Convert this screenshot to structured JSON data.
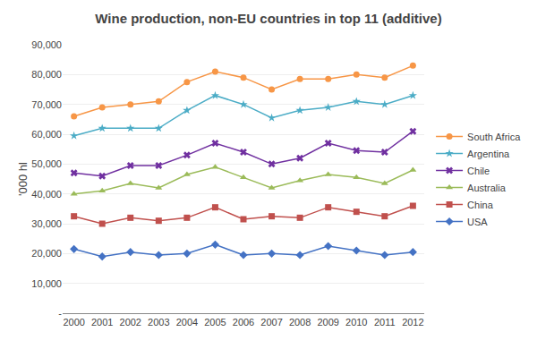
{
  "chart_data": {
    "type": "line",
    "title": "Wine production, non-EU countries in top 11 (additive)",
    "ylabel": "'000 hl",
    "x": [
      2000,
      2001,
      2002,
      2003,
      2004,
      2005,
      2006,
      2007,
      2008,
      2009,
      2010,
      2011,
      2012
    ],
    "series": [
      {
        "name": "South Africa",
        "color": "#F79646",
        "marker": "circle",
        "values": [
          66000,
          69000,
          70000,
          71000,
          77500,
          81000,
          79000,
          75000,
          78500,
          78500,
          80000,
          79000,
          83000
        ]
      },
      {
        "name": "Argentina",
        "color": "#4BACC6",
        "marker": "star",
        "values": [
          59500,
          62000,
          62000,
          62000,
          68000,
          73000,
          70000,
          65500,
          68000,
          69000,
          71000,
          70000,
          73000
        ]
      },
      {
        "name": "Chile",
        "color": "#7030A0",
        "marker": "x",
        "values": [
          47000,
          46000,
          49500,
          49500,
          53000,
          57000,
          54000,
          50000,
          52000,
          57000,
          54500,
          54000,
          61000
        ]
      },
      {
        "name": "Australia",
        "color": "#9BBB59",
        "marker": "triangle-up",
        "values": [
          40000,
          41000,
          43500,
          42000,
          46500,
          49000,
          45500,
          42000,
          44500,
          46500,
          45500,
          43500,
          48000
        ]
      },
      {
        "name": "China",
        "color": "#C0504D",
        "marker": "square",
        "values": [
          32500,
          30000,
          32000,
          31000,
          32000,
          35500,
          31500,
          32500,
          32000,
          35500,
          34000,
          32500,
          36000
        ]
      },
      {
        "name": "USA",
        "color": "#4472C4",
        "marker": "diamond",
        "values": [
          21500,
          19000,
          20500,
          19500,
          20000,
          23000,
          19500,
          20000,
          19500,
          22500,
          21000,
          19500,
          20500
        ]
      }
    ],
    "xlim": [
      1999.6,
      2012.4
    ],
    "xticks": [
      2000,
      2001,
      2002,
      2003,
      2004,
      2005,
      2006,
      2007,
      2008,
      2009,
      2010,
      2011,
      2012
    ],
    "ylim": [
      0,
      90000
    ],
    "yticks": [
      {
        "value": 0,
        "label": "-"
      },
      {
        "value": 10000,
        "label": "10,000"
      },
      {
        "value": 20000,
        "label": "20,000"
      },
      {
        "value": 30000,
        "label": "30,000"
      },
      {
        "value": 40000,
        "label": "40,000"
      },
      {
        "value": 50000,
        "label": "50,000"
      },
      {
        "value": 60000,
        "label": "60,000"
      },
      {
        "value": 70000,
        "label": "70,000"
      },
      {
        "value": 80000,
        "label": "80,000"
      },
      {
        "value": 90000,
        "label": "90,000"
      }
    ],
    "grid": true,
    "legend": "right"
  }
}
